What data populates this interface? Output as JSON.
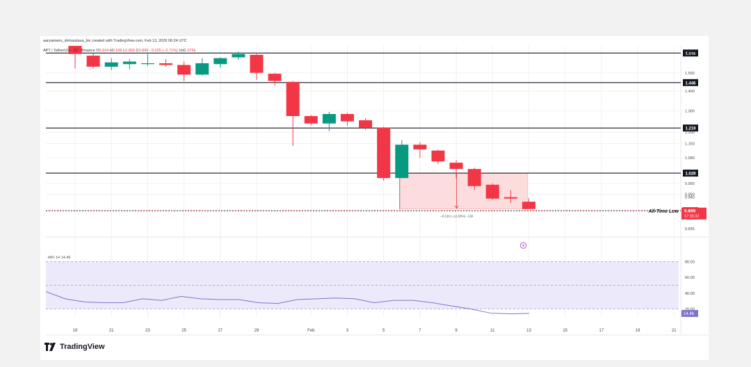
{
  "credit": "aaryamann_shrivastava_bic created with TradingView.com, Feb 13, 2026 06:24 UTC",
  "legend": {
    "pair": "APT / TetherUS · 1D · Binance",
    "open_label": "O",
    "open": "0.924",
    "high_label": "H",
    "high": "0.936",
    "low_label": "L",
    "low": "0.899",
    "close_label": "C",
    "close": "0.899",
    "change": "−0.025 (−2.71%)",
    "vol_label": "Vol",
    "vol": "1.076k"
  },
  "brand": {
    "name": "TradingView"
  },
  "colors": {
    "up": "#089981",
    "down": "#f23645",
    "zone_fill": "#fcdcdc",
    "mfi_line": "#7e74c9",
    "mfi_band": "#ece9fb",
    "last_price": "#f23645"
  },
  "chart_data": [
    {
      "type": "candlestick",
      "title": "",
      "axis_currency": "USDT",
      "ylim": [
        0.835,
        1.66
      ],
      "y_scale": "log",
      "y_ticks": [
        "1.500",
        "1.400",
        "1.300",
        "1.200",
        "1.150",
        "1.090",
        "0.990",
        "0.950",
        "0.940",
        "0.835"
      ],
      "x_ticks": [
        {
          "label": "19",
          "index": 0
        },
        {
          "label": "21",
          "index": 2
        },
        {
          "label": "23",
          "index": 4
        },
        {
          "label": "25",
          "index": 6
        },
        {
          "label": "27",
          "index": 8
        },
        {
          "label": "29",
          "index": 10
        },
        {
          "label": "Feb",
          "index": 13
        },
        {
          "label": "3",
          "index": 15
        },
        {
          "label": "5",
          "index": 17
        },
        {
          "label": "7",
          "index": 19
        },
        {
          "label": "9",
          "index": 21
        },
        {
          "label": "11",
          "index": 23
        },
        {
          "label": "13",
          "index": 25
        },
        {
          "label": "15",
          "index": 27
        },
        {
          "label": "17",
          "index": 29
        },
        {
          "label": "19",
          "index": 31
        },
        {
          "label": "21",
          "index": 33
        }
      ],
      "candles": [
        {
          "o": 1.72,
          "h": 1.74,
          "l": 1.525,
          "c": 1.61
        },
        {
          "o": 1.6,
          "h": 1.615,
          "l": 1.525,
          "c": 1.535
        },
        {
          "o": 1.535,
          "h": 1.585,
          "l": 1.515,
          "c": 1.56
        },
        {
          "o": 1.55,
          "h": 1.58,
          "l": 1.52,
          "c": 1.565
        },
        {
          "o": 1.55,
          "h": 1.61,
          "l": 1.54,
          "c": 1.555
        },
        {
          "o": 1.555,
          "h": 1.58,
          "l": 1.535,
          "c": 1.545
        },
        {
          "o": 1.545,
          "h": 1.565,
          "l": 1.455,
          "c": 1.49
        },
        {
          "o": 1.49,
          "h": 1.585,
          "l": 1.485,
          "c": 1.555
        },
        {
          "o": 1.55,
          "h": 1.59,
          "l": 1.53,
          "c": 1.585
        },
        {
          "o": 1.59,
          "h": 1.625,
          "l": 1.575,
          "c": 1.61
        },
        {
          "o": 1.605,
          "h": 1.61,
          "l": 1.46,
          "c": 1.5
        },
        {
          "o": 1.495,
          "h": 1.5,
          "l": 1.43,
          "c": 1.455
        },
        {
          "o": 1.45,
          "h": 1.455,
          "l": 1.14,
          "c": 1.275
        },
        {
          "o": 1.275,
          "h": 1.28,
          "l": 1.23,
          "c": 1.24
        },
        {
          "o": 1.24,
          "h": 1.295,
          "l": 1.205,
          "c": 1.285
        },
        {
          "o": 1.285,
          "h": 1.29,
          "l": 1.23,
          "c": 1.25
        },
        {
          "o": 1.255,
          "h": 1.265,
          "l": 1.21,
          "c": 1.22
        },
        {
          "o": 1.22,
          "h": 1.225,
          "l": 1.0,
          "c": 1.01
        },
        {
          "o": 1.01,
          "h": 1.165,
          "l": 1.01,
          "c": 1.145
        },
        {
          "o": 1.145,
          "h": 1.155,
          "l": 1.09,
          "c": 1.125
        },
        {
          "o": 1.12,
          "h": 1.125,
          "l": 1.065,
          "c": 1.075
        },
        {
          "o": 1.07,
          "h": 1.08,
          "l": 1.01,
          "c": 1.045
        },
        {
          "o": 1.045,
          "h": 1.05,
          "l": 0.965,
          "c": 0.98
        },
        {
          "o": 0.985,
          "h": 0.99,
          "l": 0.93,
          "c": 0.935
        },
        {
          "o": 0.94,
          "h": 0.965,
          "l": 0.92,
          "c": 0.935
        },
        {
          "o": 0.924,
          "h": 0.936,
          "l": 0.899,
          "c": 0.899
        }
      ],
      "levels": [
        {
          "value": 1.616,
          "label": "1.616"
        },
        {
          "value": 1.446,
          "label": "1.446"
        },
        {
          "value": 1.219,
          "label": "1.219"
        },
        {
          "value": 1.029,
          "label": "1.029"
        },
        {
          "value": 0.893,
          "label": "0.893"
        }
      ],
      "annotation": "All-Time Low",
      "last_price": {
        "value": 0.899,
        "label": "0.899",
        "countdown": "17:35:32"
      },
      "measure_zone": {
        "start_index": 18,
        "end_index": 25,
        "top": 1.029,
        "bottom": 0.899,
        "label": "−0.130 (−12.63%) −130"
      }
    },
    {
      "type": "line",
      "title": "MFI 14",
      "value_label": "14.46",
      "ylim": [
        10,
        90
      ],
      "band": [
        20,
        80
      ],
      "midline": 50,
      "y_ticks": [
        "80.00",
        "60.00",
        "40.00",
        "20.00"
      ],
      "last_value": {
        "value": 14.46,
        "label": "14.46"
      },
      "series": [
        {
          "values": [
            42,
            33,
            29,
            28,
            28,
            33,
            31,
            36,
            33,
            32,
            32,
            28,
            27,
            32,
            33,
            34,
            33,
            28,
            31,
            31,
            28,
            24,
            20,
            15,
            14,
            14.5
          ]
        }
      ]
    }
  ]
}
